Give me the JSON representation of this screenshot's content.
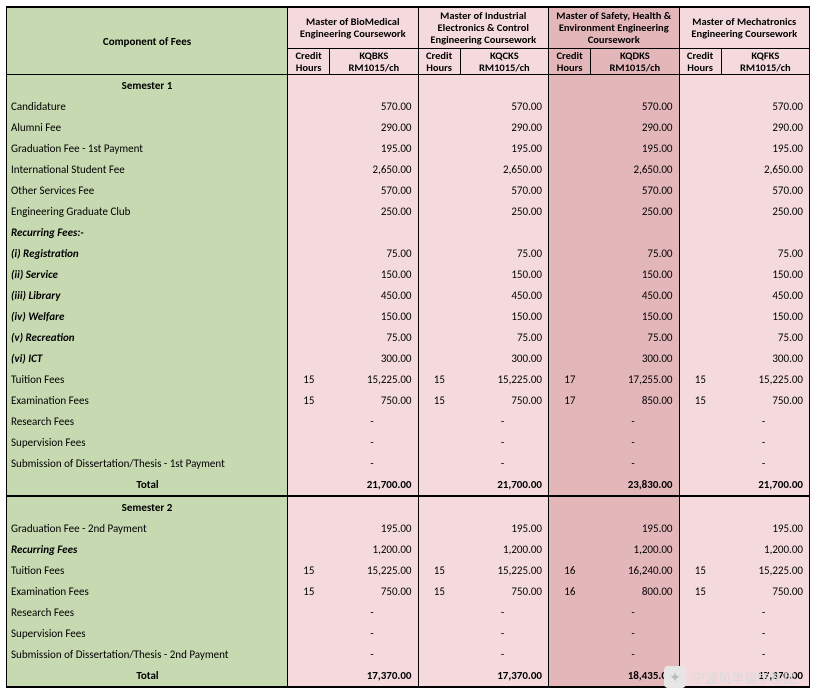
{
  "header": {
    "component_label": "Component of Fees",
    "programs": [
      {
        "name": "Master of BioMedical Engineering Coursework",
        "code": "KQBKS",
        "rate": "RM1015/ch",
        "bg": "bg-p1"
      },
      {
        "name": "Master of Industrial Electronics & Control Engineering Coursework",
        "code": "KQCKS",
        "rate": "RM1015/ch",
        "bg": "bg-p1"
      },
      {
        "name": "Master of Safety, Health & Environment Engineering Coursework",
        "code": "KQDKS",
        "rate": "RM1015/ch",
        "bg": "bg-p2"
      },
      {
        "name": "Master of Mechatronics Engineering Coursework",
        "code": "KQFKS",
        "rate": "RM1015/ch",
        "bg": "bg-p1"
      }
    ],
    "credit_label": "Credit Hours"
  },
  "semesters": [
    {
      "title": "Semester 1",
      "rows": [
        {
          "label": "Candidature",
          "cells": [
            {
              "ch": "",
              "v": "570.00"
            },
            {
              "ch": "",
              "v": "570.00"
            },
            {
              "ch": "",
              "v": "570.00"
            },
            {
              "ch": "",
              "v": "570.00"
            }
          ]
        },
        {
          "label": "Alumni Fee",
          "cells": [
            {
              "ch": "",
              "v": "290.00"
            },
            {
              "ch": "",
              "v": "290.00"
            },
            {
              "ch": "",
              "v": "290.00"
            },
            {
              "ch": "",
              "v": "290.00"
            }
          ]
        },
        {
          "label": "Graduation Fee - 1st Payment",
          "cells": [
            {
              "ch": "",
              "v": "195.00"
            },
            {
              "ch": "",
              "v": "195.00"
            },
            {
              "ch": "",
              "v": "195.00"
            },
            {
              "ch": "",
              "v": "195.00"
            }
          ]
        },
        {
          "label": "International Student Fee",
          "cells": [
            {
              "ch": "",
              "v": "2,650.00"
            },
            {
              "ch": "",
              "v": "2,650.00"
            },
            {
              "ch": "",
              "v": "2,650.00"
            },
            {
              "ch": "",
              "v": "2,650.00"
            }
          ]
        },
        {
          "label": "Other Services Fee",
          "cells": [
            {
              "ch": "",
              "v": "570.00"
            },
            {
              "ch": "",
              "v": "570.00"
            },
            {
              "ch": "",
              "v": "570.00"
            },
            {
              "ch": "",
              "v": "570.00"
            }
          ]
        },
        {
          "label": "Engineering Graduate Club",
          "cells": [
            {
              "ch": "",
              "v": "250.00"
            },
            {
              "ch": "",
              "v": "250.00"
            },
            {
              "ch": "",
              "v": "250.00"
            },
            {
              "ch": "",
              "v": "250.00"
            }
          ]
        },
        {
          "label": "Recurring Fees:-",
          "italic": true,
          "cells": [
            {
              "ch": "",
              "v": ""
            },
            {
              "ch": "",
              "v": ""
            },
            {
              "ch": "",
              "v": ""
            },
            {
              "ch": "",
              "v": ""
            }
          ]
        },
        {
          "label": "(i) Registration",
          "italic": true,
          "cells": [
            {
              "ch": "",
              "v": "75.00"
            },
            {
              "ch": "",
              "v": "75.00"
            },
            {
              "ch": "",
              "v": "75.00"
            },
            {
              "ch": "",
              "v": "75.00"
            }
          ]
        },
        {
          "label": "(ii) Service",
          "italic": true,
          "cells": [
            {
              "ch": "",
              "v": "150.00"
            },
            {
              "ch": "",
              "v": "150.00"
            },
            {
              "ch": "",
              "v": "150.00"
            },
            {
              "ch": "",
              "v": "150.00"
            }
          ]
        },
        {
          "label": "(iii) Library",
          "italic": true,
          "cells": [
            {
              "ch": "",
              "v": "450.00"
            },
            {
              "ch": "",
              "v": "450.00"
            },
            {
              "ch": "",
              "v": "450.00"
            },
            {
              "ch": "",
              "v": "450.00"
            }
          ]
        },
        {
          "label": "(iv) Welfare",
          "italic": true,
          "cells": [
            {
              "ch": "",
              "v": "150.00"
            },
            {
              "ch": "",
              "v": "150.00"
            },
            {
              "ch": "",
              "v": "150.00"
            },
            {
              "ch": "",
              "v": "150.00"
            }
          ]
        },
        {
          "label": "(v) Recreation",
          "italic": true,
          "cells": [
            {
              "ch": "",
              "v": "75.00"
            },
            {
              "ch": "",
              "v": "75.00"
            },
            {
              "ch": "",
              "v": "75.00"
            },
            {
              "ch": "",
              "v": "75.00"
            }
          ]
        },
        {
          "label": "(vi) ICT",
          "italic": true,
          "cells": [
            {
              "ch": "",
              "v": "300.00"
            },
            {
              "ch": "",
              "v": "300.00"
            },
            {
              "ch": "",
              "v": "300.00"
            },
            {
              "ch": "",
              "v": "300.00"
            }
          ]
        },
        {
          "label": "Tuition Fees",
          "cells": [
            {
              "ch": "15",
              "v": "15,225.00"
            },
            {
              "ch": "15",
              "v": "15,225.00"
            },
            {
              "ch": "17",
              "v": "17,255.00"
            },
            {
              "ch": "15",
              "v": "15,225.00"
            }
          ]
        },
        {
          "label": "Examination Fees",
          "cells": [
            {
              "ch": "15",
              "v": "750.00"
            },
            {
              "ch": "15",
              "v": "750.00"
            },
            {
              "ch": "17",
              "v": "850.00"
            },
            {
              "ch": "15",
              "v": "750.00"
            }
          ]
        },
        {
          "label": "Research Fees",
          "cells": [
            {
              "ch": "",
              "v": "-"
            },
            {
              "ch": "",
              "v": "-"
            },
            {
              "ch": "",
              "v": "-"
            },
            {
              "ch": "",
              "v": "-"
            }
          ]
        },
        {
          "label": "Supervision Fees",
          "cells": [
            {
              "ch": "",
              "v": "-"
            },
            {
              "ch": "",
              "v": "-"
            },
            {
              "ch": "",
              "v": "-"
            },
            {
              "ch": "",
              "v": "-"
            }
          ]
        },
        {
          "label": "Submission of Dissertation/Thesis - 1st Payment",
          "cells": [
            {
              "ch": "",
              "v": "-"
            },
            {
              "ch": "",
              "v": "-"
            },
            {
              "ch": "",
              "v": "-"
            },
            {
              "ch": "",
              "v": "-"
            }
          ]
        }
      ],
      "total": {
        "label": "Total",
        "cells": [
          {
            "ch": "",
            "v": "21,700.00"
          },
          {
            "ch": "",
            "v": "21,700.00"
          },
          {
            "ch": "",
            "v": "23,830.00"
          },
          {
            "ch": "",
            "v": "21,700.00"
          }
        ]
      }
    },
    {
      "title": "Semester 2",
      "rows": [
        {
          "label": "Graduation Fee - 2nd Payment",
          "cells": [
            {
              "ch": "",
              "v": "195.00"
            },
            {
              "ch": "",
              "v": "195.00"
            },
            {
              "ch": "",
              "v": "195.00"
            },
            {
              "ch": "",
              "v": "195.00"
            }
          ]
        },
        {
          "label": "Recurring Fees",
          "italic": true,
          "cells": [
            {
              "ch": "",
              "v": "1,200.00"
            },
            {
              "ch": "",
              "v": "1,200.00"
            },
            {
              "ch": "",
              "v": "1,200.00"
            },
            {
              "ch": "",
              "v": "1,200.00"
            }
          ]
        },
        {
          "label": "Tuition Fees",
          "cells": [
            {
              "ch": "15",
              "v": "15,225.00"
            },
            {
              "ch": "15",
              "v": "15,225.00"
            },
            {
              "ch": "16",
              "v": "16,240.00"
            },
            {
              "ch": "15",
              "v": "15,225.00"
            }
          ]
        },
        {
          "label": "Examination Fees",
          "cells": [
            {
              "ch": "15",
              "v": "750.00"
            },
            {
              "ch": "15",
              "v": "750.00"
            },
            {
              "ch": "16",
              "v": "800.00"
            },
            {
              "ch": "15",
              "v": "750.00"
            }
          ]
        },
        {
          "label": "Research Fees",
          "cells": [
            {
              "ch": "",
              "v": "-"
            },
            {
              "ch": "",
              "v": "-"
            },
            {
              "ch": "",
              "v": "-"
            },
            {
              "ch": "",
              "v": "-"
            }
          ]
        },
        {
          "label": "Supervision Fees",
          "cells": [
            {
              "ch": "",
              "v": "-"
            },
            {
              "ch": "",
              "v": "-"
            },
            {
              "ch": "",
              "v": "-"
            },
            {
              "ch": "",
              "v": "-"
            }
          ]
        },
        {
          "label": "Submission of Dissertation/Thesis - 2nd Payment",
          "cells": [
            {
              "ch": "",
              "v": "-"
            },
            {
              "ch": "",
              "v": "-"
            },
            {
              "ch": "",
              "v": "-"
            },
            {
              "ch": "",
              "v": "-"
            }
          ]
        }
      ],
      "total": {
        "label": "Total",
        "cells": [
          {
            "ch": "",
            "v": "17,370.00"
          },
          {
            "ch": "",
            "v": "17,370.00"
          },
          {
            "ch": "",
            "v": "18,435.00"
          },
          {
            "ch": "",
            "v": "17,370.00"
          }
        ]
      }
    }
  ],
  "colors": {
    "green": "#c6d9b1",
    "pink_light": "#f4dadc",
    "pink_dark": "#e3b6b9"
  },
  "col_widths": {
    "label": 280,
    "credit": 42,
    "value": 88
  },
  "watermark": "宁波风华留学移民"
}
